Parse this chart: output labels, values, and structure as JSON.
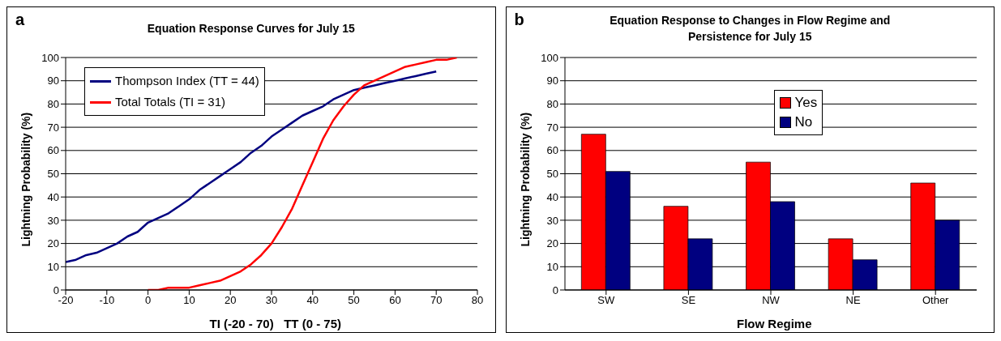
{
  "chart_data": [
    {
      "type": "line",
      "title": "Equation Response Curves for July 15",
      "xlabel": "TI (-20 - 70)   TT (0 - 75)",
      "ylabel": "Lightning Probability (%)",
      "annotations": [
        "a"
      ],
      "series": [
        {
          "name": "Thompson Index (TT = 44)",
          "color": "#000080",
          "x": [
            -20,
            -17.5,
            -15,
            -12.5,
            -10,
            -7.5,
            -5,
            -2.5,
            0,
            2.5,
            5,
            7.5,
            10,
            12.5,
            15,
            17.5,
            20,
            22.5,
            25,
            27.5,
            30,
            32.5,
            35,
            37.5,
            40,
            42.5,
            45,
            47.5,
            50,
            52.5,
            55,
            57.5,
            60,
            62.5,
            65,
            67.5,
            70
          ],
          "values": [
            12,
            13,
            15,
            16,
            18,
            20,
            23,
            25,
            29,
            31,
            33,
            36,
            39,
            43,
            46,
            49,
            52,
            55,
            59,
            62,
            66,
            69,
            72,
            75,
            77,
            79,
            82,
            84,
            86,
            87,
            88,
            89,
            90,
            91,
            92,
            93,
            94
          ]
        },
        {
          "name": "Total Totals (TI = 31)",
          "color": "#ff0000",
          "x": [
            0,
            2.5,
            5,
            7.5,
            10,
            12.5,
            15,
            17.5,
            20,
            22.5,
            25,
            27.5,
            30,
            32.5,
            35,
            37.5,
            40,
            42.5,
            45,
            47.5,
            50,
            52.5,
            55,
            57.5,
            60,
            62.5,
            65,
            67.5,
            70,
            72.5,
            75
          ],
          "values": [
            0,
            0,
            1,
            1,
            1,
            2,
            3,
            4,
            6,
            8,
            11,
            15,
            20,
            27,
            35,
            45,
            55,
            65,
            73,
            79,
            84,
            88,
            90,
            92,
            94,
            96,
            97,
            98,
            99,
            99,
            100
          ]
        }
      ],
      "xlim": [
        -20,
        80
      ],
      "xticks": [
        -20,
        -10,
        0,
        10,
        20,
        30,
        40,
        50,
        60,
        70,
        80
      ],
      "ylim": [
        0,
        100
      ],
      "yticks": [
        0,
        10,
        20,
        30,
        40,
        50,
        60,
        70,
        80,
        90,
        100
      ],
      "grid": "y",
      "legend": "top left",
      "marker": "none",
      "line_style": "solid"
    },
    {
      "type": "bar",
      "title": "Equation Response to Changes in Flow Regime and Persistence for July 15",
      "xlabel": "Flow Regime",
      "ylabel": "Lightning Probability (%)",
      "annotations": [
        "b"
      ],
      "categories": [
        "SW",
        "SE",
        "NW",
        "NE",
        "Other"
      ],
      "series": [
        {
          "name": "Yes",
          "color": "#ff0000",
          "values": [
            67,
            36,
            55,
            22,
            46
          ]
        },
        {
          "name": "No",
          "color": "#000080",
          "values": [
            51,
            22,
            38,
            13,
            30
          ]
        }
      ],
      "ylim": [
        0,
        100
      ],
      "yticks": [
        0,
        10,
        20,
        30,
        40,
        50,
        60,
        70,
        80,
        90,
        100
      ],
      "grid": "y",
      "legend": "top"
    }
  ]
}
